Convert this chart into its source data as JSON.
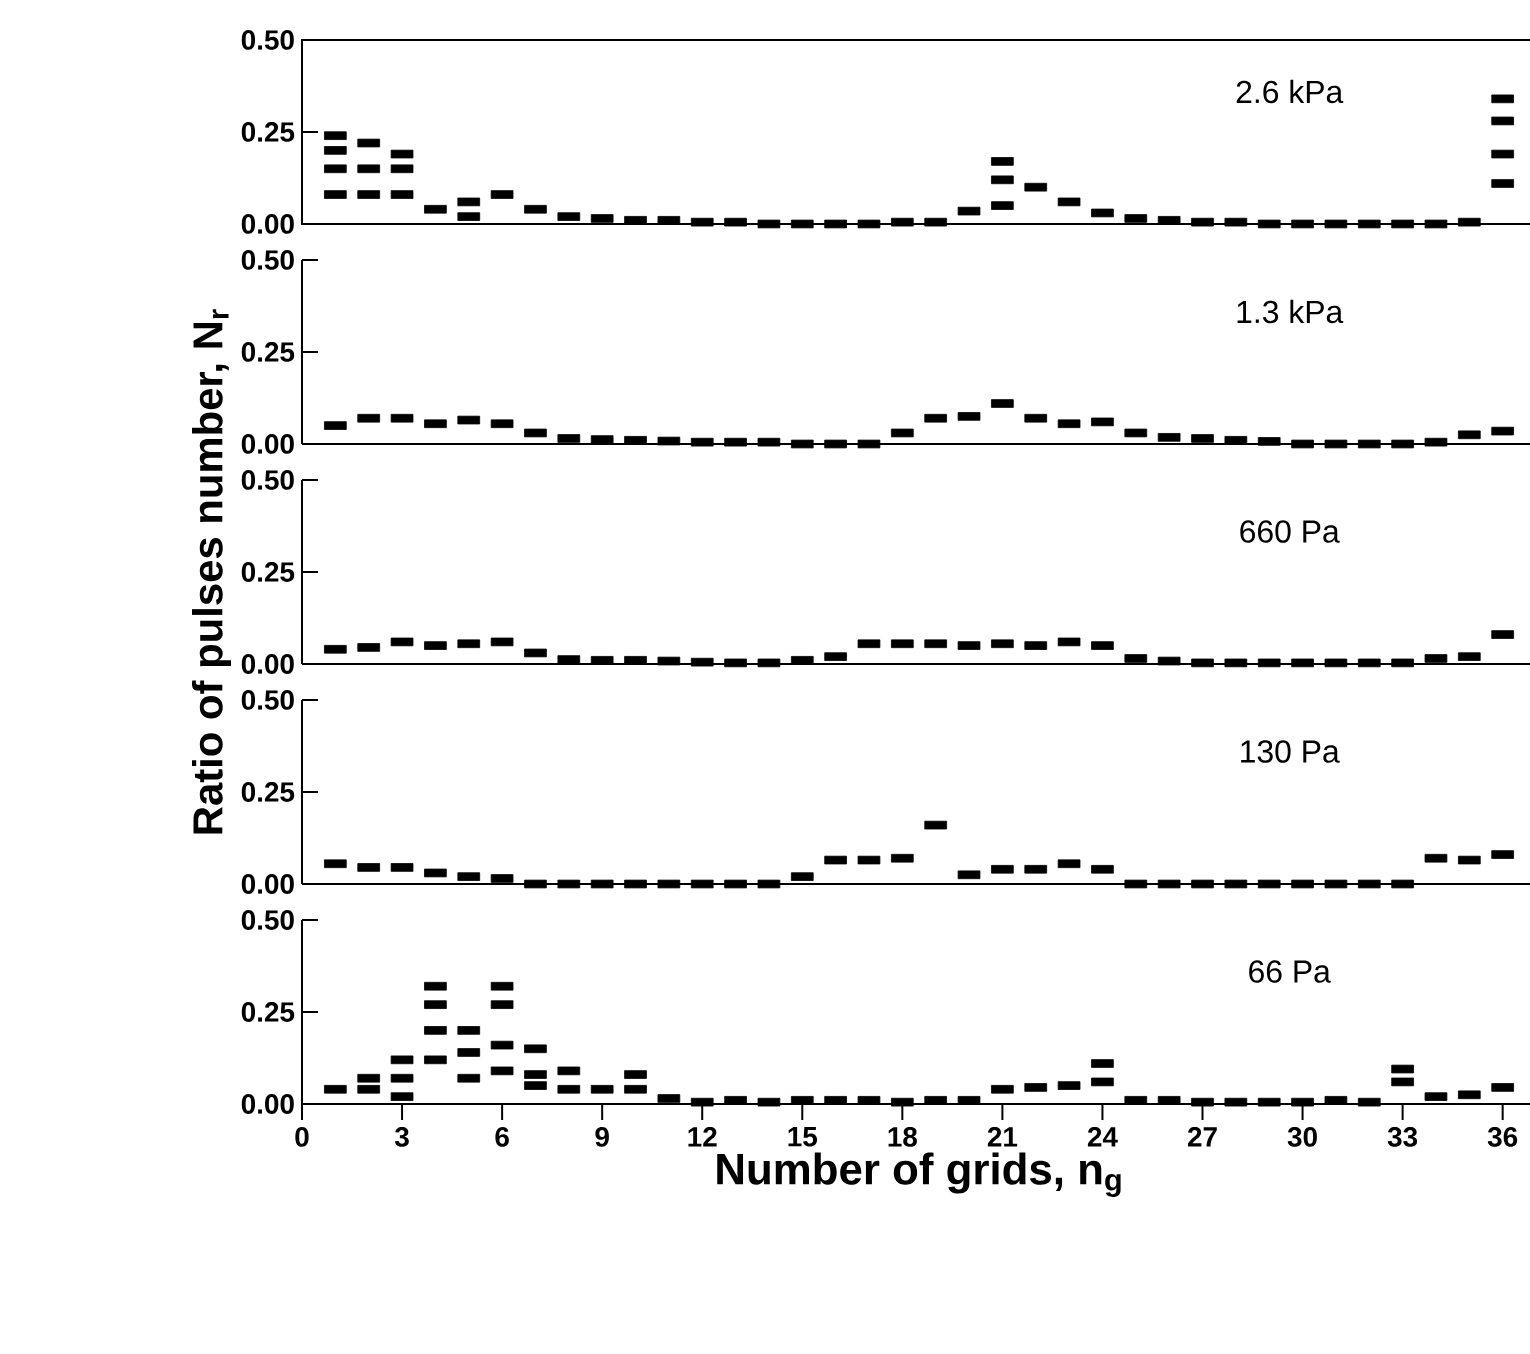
{
  "chart_data": [
    {
      "type": "scatter",
      "annotations": [
        "2.6 kPa"
      ],
      "xlim": [
        0,
        37
      ],
      "ylim": [
        0,
        0.5
      ],
      "yticks": [
        {
          "value": 0,
          "label": "0.00"
        },
        {
          "value": 0.25,
          "label": "0.25"
        },
        {
          "value": 0.5,
          "label": "0.50"
        }
      ],
      "tick_labels": "y",
      "marker": "square",
      "series": [
        {
          "color": "#000000",
          "x": [
            1,
            2,
            3,
            4,
            5,
            6,
            7,
            8,
            9,
            10,
            11,
            12,
            13,
            14,
            15,
            16,
            17,
            18,
            19,
            20,
            21,
            22,
            23,
            24,
            25,
            26,
            27,
            28,
            29,
            30,
            31,
            32,
            33,
            34,
            35,
            36,
            1,
            1,
            1,
            2,
            2,
            3,
            3,
            5,
            21,
            21,
            36,
            36,
            36
          ],
          "values": [
            0.08,
            0.08,
            0.08,
            0.04,
            0.06,
            0.08,
            0.04,
            0.02,
            0.015,
            0.01,
            0.01,
            0.005,
            0.005,
            0,
            0,
            0,
            0,
            0.005,
            0.005,
            0.035,
            0.12,
            0.1,
            0.06,
            0.03,
            0.015,
            0.01,
            0.005,
            0.005,
            0,
            0,
            0,
            0,
            0,
            0,
            0.005,
            0.11,
            0.15,
            0.2,
            0.24,
            0.15,
            0.22,
            0.15,
            0.19,
            0.02,
            0.17,
            0.05,
            0.34,
            0.28,
            0.19
          ]
        }
      ]
    },
    {
      "type": "scatter",
      "annotations": [
        "1.3 kPa"
      ],
      "xlim": [
        0,
        37
      ],
      "ylim": [
        0,
        0.5
      ],
      "yticks": [
        {
          "value": 0,
          "label": "0.00"
        },
        {
          "value": 0.25,
          "label": "0.25"
        },
        {
          "value": 0.5,
          "label": "0.50"
        }
      ],
      "tick_labels": "y",
      "marker": "square",
      "series": [
        {
          "color": "#000000",
          "x": [
            1,
            2,
            3,
            4,
            5,
            6,
            7,
            8,
            9,
            10,
            11,
            12,
            13,
            14,
            15,
            16,
            17,
            18,
            19,
            20,
            21,
            22,
            23,
            24,
            25,
            26,
            27,
            28,
            29,
            30,
            31,
            32,
            33,
            34,
            35,
            36
          ],
          "values": [
            0.05,
            0.07,
            0.07,
            0.055,
            0.065,
            0.055,
            0.03,
            0.015,
            0.012,
            0.01,
            0.008,
            0.005,
            0.005,
            0.005,
            0,
            0,
            0,
            0.03,
            0.07,
            0.075,
            0.11,
            0.07,
            0.055,
            0.06,
            0.03,
            0.018,
            0.015,
            0.01,
            0.007,
            0,
            0,
            0,
            0,
            0.005,
            0.025,
            0.035
          ]
        }
      ]
    },
    {
      "type": "scatter",
      "annotations": [
        "660 Pa"
      ],
      "ylabel": "Ratio of pulses number, N$_{r}$",
      "xlim": [
        0,
        37
      ],
      "ylim": [
        0,
        0.5
      ],
      "yticks": [
        {
          "value": 0,
          "label": "0.00"
        },
        {
          "value": 0.25,
          "label": "0.25"
        },
        {
          "value": 0.5,
          "label": "0.50"
        }
      ],
      "tick_labels": "y",
      "marker": "square",
      "series": [
        {
          "color": "#000000",
          "x": [
            1,
            2,
            3,
            4,
            5,
            6,
            7,
            8,
            9,
            10,
            11,
            12,
            13,
            14,
            15,
            16,
            17,
            18,
            19,
            20,
            21,
            22,
            23,
            24,
            25,
            26,
            27,
            28,
            29,
            30,
            31,
            32,
            33,
            34,
            35,
            36
          ],
          "values": [
            0.04,
            0.045,
            0.06,
            0.05,
            0.055,
            0.06,
            0.03,
            0.012,
            0.01,
            0.01,
            0.008,
            0.005,
            0.003,
            0.003,
            0.01,
            0.02,
            0.055,
            0.055,
            0.055,
            0.05,
            0.055,
            0.05,
            0.06,
            0.05,
            0.015,
            0.008,
            0.003,
            0.003,
            0.003,
            0.003,
            0.003,
            0.003,
            0.003,
            0.015,
            0.02,
            0.08
          ]
        }
      ]
    },
    {
      "type": "scatter",
      "annotations": [
        "130 Pa"
      ],
      "xlim": [
        0,
        37
      ],
      "ylim": [
        0,
        0.5
      ],
      "yticks": [
        {
          "value": 0,
          "label": "0.00"
        },
        {
          "value": 0.25,
          "label": "0.25"
        },
        {
          "value": 0.5,
          "label": "0.50"
        }
      ],
      "tick_labels": "y",
      "marker": "square",
      "series": [
        {
          "color": "#000000",
          "x": [
            1,
            2,
            3,
            4,
            5,
            6,
            7,
            8,
            9,
            10,
            11,
            12,
            13,
            14,
            15,
            16,
            17,
            18,
            19,
            20,
            21,
            22,
            23,
            24,
            25,
            26,
            27,
            28,
            29,
            30,
            31,
            32,
            33,
            34,
            35,
            36
          ],
          "values": [
            0.055,
            0.045,
            0.045,
            0.03,
            0.02,
            0.015,
            0,
            0,
            0,
            0,
            0,
            0,
            0,
            0,
            0.02,
            0.065,
            0.065,
            0.07,
            0.16,
            0.025,
            0.04,
            0.04,
            0.055,
            0.04,
            0,
            0,
            0,
            0,
            0,
            0,
            0,
            0,
            0,
            0.07,
            0.065,
            0.08
          ]
        }
      ]
    },
    {
      "type": "scatter",
      "annotations": [
        "66 Pa"
      ],
      "xlabel": "Number of grids, n$_{g}$",
      "xlim": [
        0,
        37
      ],
      "ylim": [
        0,
        0.5
      ],
      "xticks": [
        0,
        3,
        6,
        9,
        12,
        15,
        18,
        21,
        24,
        27,
        30,
        33,
        36
      ],
      "yticks": [
        {
          "value": 0,
          "label": "0.00"
        },
        {
          "value": 0.25,
          "label": "0.25"
        },
        {
          "value": 0.5,
          "label": "0.50"
        }
      ],
      "marker": "square",
      "series": [
        {
          "color": "#000000",
          "x": [
            1,
            2,
            3,
            4,
            5,
            6,
            7,
            8,
            9,
            10,
            11,
            12,
            13,
            14,
            15,
            16,
            17,
            18,
            19,
            20,
            21,
            22,
            23,
            24,
            25,
            26,
            27,
            28,
            29,
            30,
            31,
            32,
            33,
            34,
            35,
            36,
            2,
            3,
            3,
            4,
            4,
            4,
            5,
            5,
            6,
            6,
            6,
            7,
            7,
            8,
            10,
            24,
            33
          ],
          "values": [
            0.04,
            0.04,
            0.07,
            0.2,
            0.14,
            0.16,
            0.08,
            0.04,
            0.04,
            0.04,
            0.015,
            0.005,
            0.01,
            0.005,
            0.01,
            0.01,
            0.01,
            0.005,
            0.01,
            0.01,
            0.04,
            0.045,
            0.05,
            0.06,
            0.01,
            0.01,
            0.005,
            0.005,
            0.005,
            0.005,
            0.01,
            0.005,
            0.06,
            0.02,
            0.025,
            0.045,
            0.07,
            0.12,
            0.02,
            0.32,
            0.12,
            0.27,
            0.2,
            0.07,
            0.32,
            0.09,
            0.27,
            0.15,
            0.05,
            0.09,
            0.08,
            0.11,
            0.095
          ]
        }
      ]
    }
  ]
}
